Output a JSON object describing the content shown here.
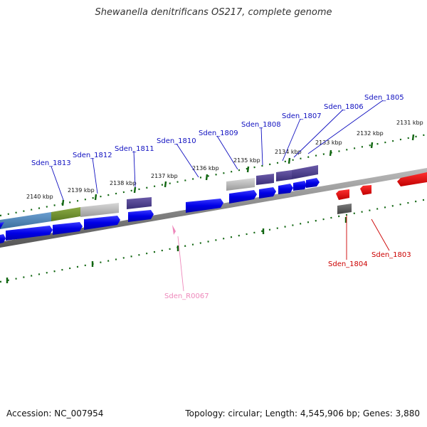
{
  "title": "Shewanella denitrificans OS217, complete genome",
  "footer": {
    "accession": "Accession: NC_007954",
    "summary": "Topology: circular; Length: 4,545,906 bp; Genes: 3,880"
  },
  "colors": {
    "forward_gene_label": "#1010c0",
    "reverse_gene_label": "#cc0000",
    "rna_label": "#ee88bb",
    "tick": "#116611",
    "backbone": "#888888"
  },
  "kbp_ticks": [
    "2140 kbp",
    "2139 kbp",
    "2138 kbp",
    "2137 kbp",
    "2136 kbp",
    "2135 kbp",
    "2134 kbp",
    "2133 kbp",
    "2132 kbp",
    "2131 kbp"
  ],
  "gene_labels": [
    {
      "id": "g1813",
      "text": "Sden_1813"
    },
    {
      "id": "g1812",
      "text": "Sden_1812"
    },
    {
      "id": "g1811",
      "text": "Sden_1811"
    },
    {
      "id": "g1810",
      "text": "Sden_1810"
    },
    {
      "id": "g1809",
      "text": "Sden_1809"
    },
    {
      "id": "g1808",
      "text": "Sden_1808"
    },
    {
      "id": "g1807",
      "text": "Sden_1807"
    },
    {
      "id": "g1806",
      "text": "Sden_1806"
    },
    {
      "id": "g1805",
      "text": "Sden_1805"
    },
    {
      "id": "g1804",
      "text": "Sden_1804"
    },
    {
      "id": "g1803",
      "text": "Sden_1803"
    },
    {
      "id": "r0067",
      "text": "Sden_R0067"
    }
  ]
}
